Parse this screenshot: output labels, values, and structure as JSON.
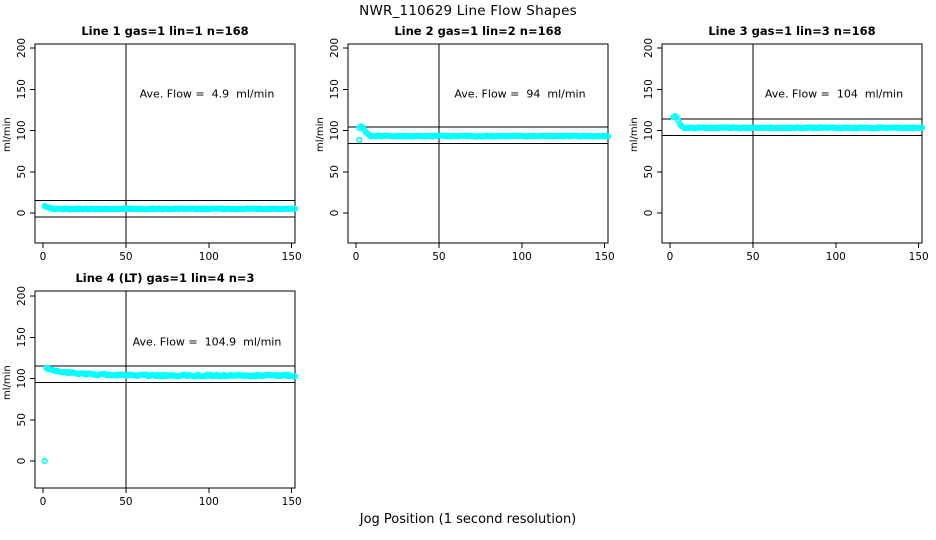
{
  "figure": {
    "title": "NWR_110629  Line Flow Shapes",
    "xlabel": "Jog Position (1 second resolution)"
  },
  "chart_data": {
    "type": "scatter",
    "title": "NWR_110629  Line Flow Shapes",
    "xlabel": "Jog Position (1 second resolution)",
    "ylabel": "ml/min",
    "point_color": "#00FFFF",
    "axis_color": "#000000",
    "background": "#FFFFFF",
    "x_ticks": [
      0,
      50,
      100,
      150
    ],
    "y_ticks": [
      0,
      50,
      100,
      150,
      200
    ],
    "xlim": [
      0,
      155
    ],
    "ylim": [
      0,
      200
    ],
    "vline_x": 50,
    "legend": "none",
    "grid": "off",
    "panels": [
      {
        "title": "Line 1 gas=1 lin=1 n=168",
        "n": 168,
        "ave_flow": 4.9,
        "annotation": "Ave. Flow =  4.9  ml/min",
        "ref_lines": [
          14.9,
          -5.1
        ],
        "series": {
          "name": "line1-flow",
          "segments": [
            {
              "type": "points",
              "pts": [
                [
                  1,
                  8.5
                ],
                [
                  2,
                  7.5
                ],
                [
                  3,
                  6.8
                ],
                [
                  4,
                  6.2
                ],
                [
                  5,
                  5.8
                ]
              ]
            },
            {
              "type": "steady",
              "x_from": 6,
              "x_to": 152,
              "y": 5.0,
              "noise": 0.6
            }
          ]
        }
      },
      {
        "title": "Line 2 gas=1 lin=2 n=168",
        "n": 168,
        "ave_flow": 94,
        "annotation": "Ave. Flow =  94  ml/min",
        "ref_lines": [
          104,
          84
        ],
        "series": {
          "name": "line2-flow",
          "segments": [
            {
              "type": "points",
              "pts": [
                [
                  2,
                  88.5
                ]
              ]
            },
            {
              "type": "points",
              "pts": [
                [
                  2,
                  103
                ],
                [
                  3,
                  105
                ],
                [
                  4,
                  104
                ],
                [
                  5,
                  101
                ],
                [
                  6,
                  98
                ],
                [
                  7,
                  96
                ],
                [
                  8,
                  94.5
                ]
              ]
            },
            {
              "type": "steady",
              "x_from": 9,
              "x_to": 152,
              "y": 93.2,
              "noise": 0.6
            }
          ]
        }
      },
      {
        "title": "Line 3 gas=1 lin=3 n=168",
        "n": 168,
        "ave_flow": 104,
        "annotation": "Ave. Flow =  104  ml/min",
        "ref_lines": [
          114,
          94
        ],
        "series": {
          "name": "line3-flow",
          "segments": [
            {
              "type": "points",
              "pts": [
                [
                  2,
                  116
                ],
                [
                  3,
                  117.5
                ],
                [
                  4,
                  116
                ],
                [
                  5,
                  112
                ],
                [
                  6,
                  108
                ],
                [
                  7,
                  105.5
                ],
                [
                  8,
                  104
                ]
              ]
            },
            {
              "type": "steady",
              "x_from": 9,
              "x_to": 152,
              "y": 103.2,
              "noise": 0.6
            }
          ]
        }
      },
      {
        "title": "Line 4 (LT) gas=1 lin=4 n=3",
        "n": 3,
        "ave_flow": 104.9,
        "annotation": "Ave. Flow =  104.9  ml/min",
        "ref_lines": [
          114.9,
          94.9
        ],
        "series": {
          "name": "line4-flow",
          "segments": [
            {
              "type": "points",
              "pts": [
                [
                  1,
                  0
                ]
              ]
            },
            {
              "type": "decay",
              "x_from": 2,
              "x_to": 152,
              "y_end": 103.6,
              "amp": 8.5,
              "tau": 16,
              "noise": 1.1
            }
          ]
        }
      }
    ]
  }
}
